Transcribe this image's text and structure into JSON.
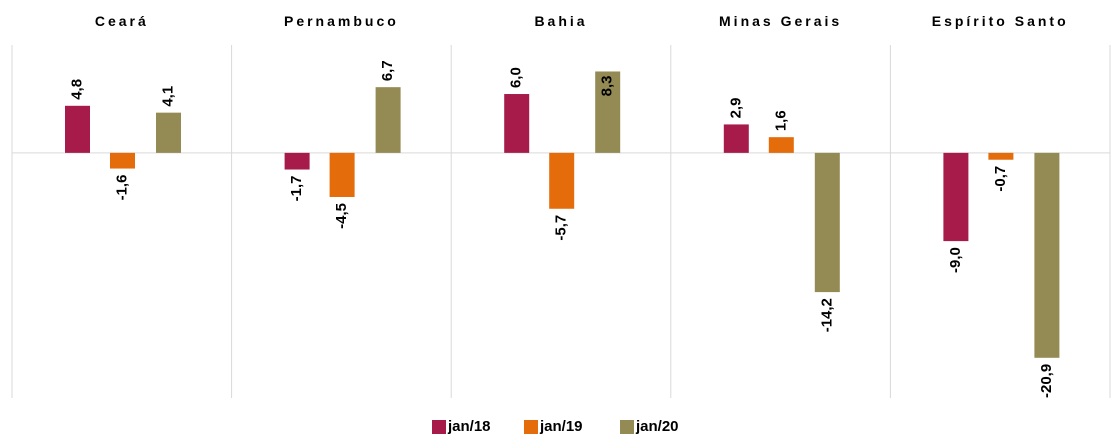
{
  "chart_data": {
    "type": "bar",
    "categories": [
      "Ceará",
      "Pernambuco",
      "Bahia",
      "Minas Gerais",
      "Espírito Santo"
    ],
    "series": [
      {
        "name": "jan/18",
        "color": "#a61b4a",
        "values": [
          4.8,
          -1.7,
          6.0,
          2.9,
          -9.0
        ],
        "value_labels": [
          "4,8",
          "-1,7",
          "6,0",
          "2,9",
          "-9,0"
        ]
      },
      {
        "name": "jan/19",
        "color": "#e46c0a",
        "values": [
          -1.6,
          -4.5,
          -5.7,
          1.6,
          -0.7
        ],
        "value_labels": [
          "-1,6",
          "-4,5",
          "-5,7",
          "1,6",
          "-0,7"
        ]
      },
      {
        "name": "jan/20",
        "color": "#948a54",
        "values": [
          4.1,
          6.7,
          8.3,
          -14.2,
          -20.9
        ],
        "value_labels": [
          "4,1",
          "6,7",
          "8,3",
          "-14,2",
          "-20,9"
        ]
      }
    ],
    "ylim": [
      -25,
      11
    ],
    "legend": "bottom"
  }
}
